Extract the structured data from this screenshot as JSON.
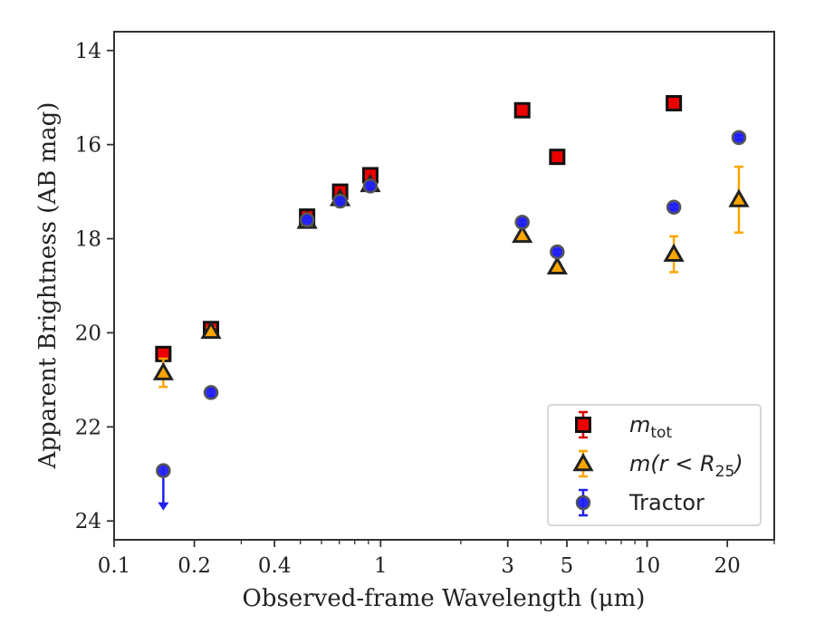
{
  "chart_data": {
    "type": "scatter",
    "xlabel": "Observed-frame Wavelength (μm)",
    "ylabel": "Apparent Brightness (AB mag)",
    "xscale": "log",
    "xlim": [
      0.1,
      30
    ],
    "ylim": [
      24.4,
      13.6
    ],
    "y_inverted": true,
    "grid": false,
    "legend_position": "lower-right",
    "x_major_ticks": [
      {
        "value": 0.1,
        "label": "0.1"
      },
      {
        "value": 0.2,
        "label": "0.2"
      },
      {
        "value": 0.4,
        "label": "0.4"
      },
      {
        "value": 1,
        "label": "1"
      },
      {
        "value": 3,
        "label": "3"
      },
      {
        "value": 5,
        "label": "5"
      },
      {
        "value": 10,
        "label": "10"
      },
      {
        "value": 20,
        "label": "20"
      }
    ],
    "x_minor_ticks": [
      0.3,
      0.5,
      0.6,
      0.7,
      0.8,
      0.9,
      2,
      4,
      6,
      7,
      8,
      9,
      30
    ],
    "y_ticks": [
      {
        "value": 14,
        "label": "14"
      },
      {
        "value": 16,
        "label": "16"
      },
      {
        "value": 18,
        "label": "18"
      },
      {
        "value": 20,
        "label": "20"
      },
      {
        "value": 22,
        "label": "22"
      },
      {
        "value": 24,
        "label": "24"
      }
    ],
    "series": [
      {
        "key": "mtot",
        "legend_main": "m",
        "legend_sub": "tot",
        "marker": "square",
        "fill": "#ee0000",
        "edge": "#111111",
        "errcolor": "#dd0000",
        "points": [
          {
            "x": 0.153,
            "y": 20.45,
            "err": 0.06
          },
          {
            "x": 0.231,
            "y": 19.92,
            "err": 0.08
          },
          {
            "x": 0.53,
            "y": 17.53,
            "err": 0.04
          },
          {
            "x": 0.705,
            "y": 17.0,
            "err": 0.04
          },
          {
            "x": 0.915,
            "y": 16.65,
            "err": 0.04
          },
          {
            "x": 3.4,
            "y": 15.27,
            "err": 0.03
          },
          {
            "x": 4.6,
            "y": 16.26,
            "err": 0.03
          },
          {
            "x": 12.6,
            "y": 15.12,
            "err": 0.03
          }
        ]
      },
      {
        "key": "m25",
        "legend_main": "m(r < R",
        "legend_sub": "25",
        "legend_tail": ")",
        "marker": "triangle",
        "fill": "#ffa500",
        "edge": "#222222",
        "errcolor": "#ffa500",
        "points": [
          {
            "x": 0.153,
            "y": 20.85,
            "err": 0.3
          },
          {
            "x": 0.231,
            "y": 19.97,
            "err": 0.08
          },
          {
            "x": 0.53,
            "y": 17.63,
            "err": 0.05
          },
          {
            "x": 0.705,
            "y": 17.15,
            "err": 0.05
          },
          {
            "x": 0.915,
            "y": 16.85,
            "err": 0.05
          },
          {
            "x": 3.4,
            "y": 17.93,
            "err": 0.05
          },
          {
            "x": 4.6,
            "y": 18.6,
            "err": 0.06
          },
          {
            "x": 12.6,
            "y": 18.33,
            "err": 0.38
          },
          {
            "x": 22.1,
            "y": 17.17,
            "err": 0.7
          }
        ]
      },
      {
        "key": "tractor",
        "legend_main": "Tractor",
        "marker": "circle",
        "fill": "#1f1fff",
        "edge": "#555555",
        "errcolor": "#2020ee",
        "points": [
          {
            "x": 0.153,
            "y": 22.93,
            "err": 0.0,
            "upper_limit": true
          },
          {
            "x": 0.231,
            "y": 21.27,
            "err": 0.08
          },
          {
            "x": 0.53,
            "y": 17.6,
            "err": 0.05
          },
          {
            "x": 0.705,
            "y": 17.2,
            "err": 0.05
          },
          {
            "x": 0.915,
            "y": 16.88,
            "err": 0.05
          },
          {
            "x": 3.4,
            "y": 17.65,
            "err": 0.05
          },
          {
            "x": 4.6,
            "y": 18.28,
            "err": 0.05
          },
          {
            "x": 12.6,
            "y": 17.33,
            "err": 0.05
          },
          {
            "x": 22.1,
            "y": 15.85,
            "err": 0.05
          }
        ]
      }
    ]
  }
}
